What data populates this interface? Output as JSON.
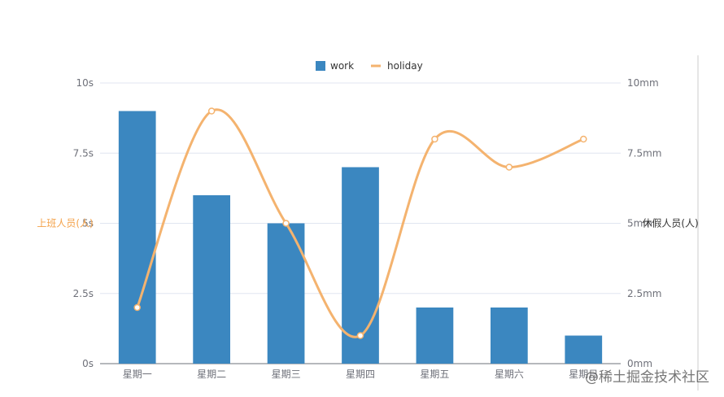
{
  "chart_data": {
    "type": "bar",
    "categories": [
      "星期一",
      "星期二",
      "星期三",
      "星期四",
      "星期五",
      "星期六",
      "星期日"
    ],
    "series": [
      {
        "name": "work",
        "type": "bar",
        "axis": "left",
        "values": [
          9,
          6,
          5,
          7,
          2,
          2,
          1
        ]
      },
      {
        "name": "holiday",
        "type": "line",
        "axis": "right",
        "smooth": true,
        "values": [
          2,
          9,
          5,
          1,
          8,
          7,
          8
        ]
      }
    ],
    "yaxis_left": {
      "name": "上班人员(人)",
      "ylim": [
        0,
        10
      ],
      "ticks": [
        0,
        2.5,
        5,
        7.5,
        10
      ],
      "tick_labels": [
        "0s",
        "2.5s",
        "5s",
        "7.5s",
        "10s"
      ]
    },
    "yaxis_right": {
      "name": "休假人员(人)",
      "ylim": [
        0,
        10
      ],
      "ticks": [
        0,
        2.5,
        5,
        7.5,
        10
      ],
      "tick_labels": [
        "0mm",
        "2.5mm",
        "5mm",
        "7.5mm",
        "10mm"
      ]
    },
    "grid": true,
    "legend_position": "top-center",
    "colors": {
      "work": "#3b87c0",
      "holiday": "#f4b36f",
      "left_axis_name": "#f4a24a",
      "right_axis_name": "#333333",
      "grid": "#e0e6f1",
      "axis": "#6e7079"
    }
  },
  "watermark": "@稀土掘金技术社区"
}
